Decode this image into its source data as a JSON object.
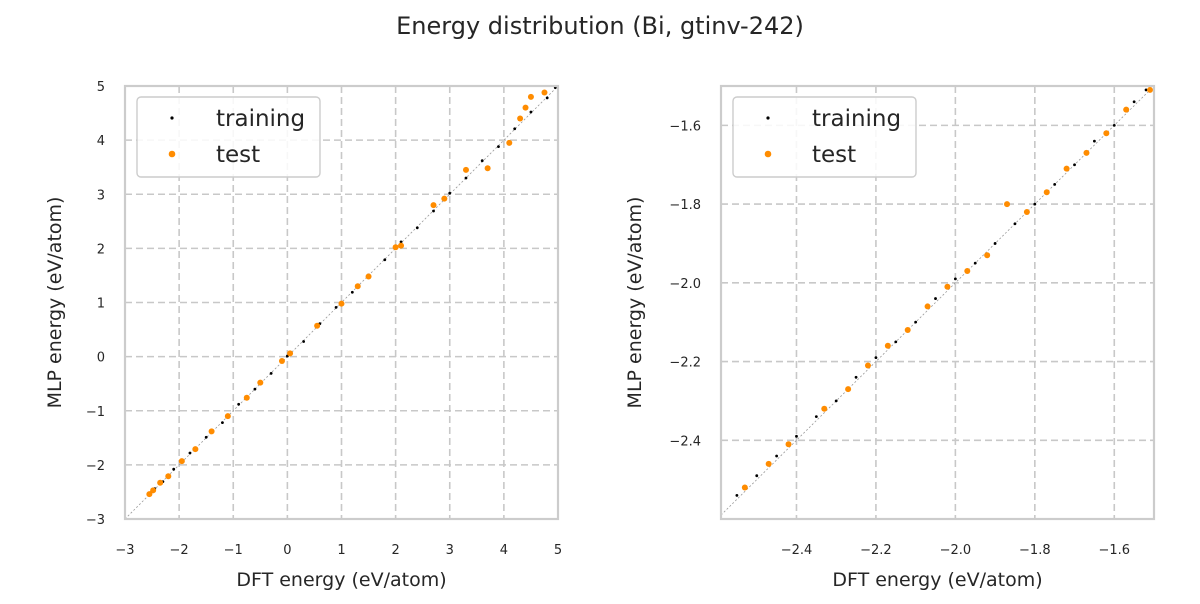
{
  "figure": {
    "title": "Energy distribution (Bi, gtinv-242)"
  },
  "colors": {
    "training": "#000000",
    "test": "#ff8c00",
    "grid": "#c8c8c8",
    "frame": "#cccccc",
    "diagonal": "#999999"
  },
  "chart_data": [
    {
      "type": "scatter",
      "xlabel": "DFT energy (eV/atom)",
      "ylabel": "MLP energy (eV/atom)",
      "xlim": [
        -3,
        5
      ],
      "ylim": [
        -3,
        5
      ],
      "xticks": [
        -3,
        -2,
        -1,
        0,
        1,
        2,
        3,
        4,
        5
      ],
      "yticks": [
        -3,
        -2,
        -1,
        0,
        1,
        2,
        3,
        4,
        5
      ],
      "xtick_labels": [
        "−3",
        "−2",
        "−1",
        "0",
        "1",
        "2",
        "3",
        "4",
        "5"
      ],
      "ytick_labels": [
        "−3",
        "−2",
        "−1",
        "0",
        "1",
        "2",
        "3",
        "4",
        "5"
      ],
      "grid": true,
      "legend_position": "top-left",
      "reference_line": "y = x",
      "series": [
        {
          "name": "training",
          "color": "#000000",
          "points": [
            [
              -2.52,
              -2.51
            ],
            [
              -2.45,
              -2.44
            ],
            [
              -2.3,
              -2.31
            ],
            [
              -2.1,
              -2.08
            ],
            [
              -1.8,
              -1.78
            ],
            [
              -1.5,
              -1.49
            ],
            [
              -1.2,
              -1.22
            ],
            [
              -0.9,
              -0.88
            ],
            [
              -0.6,
              -0.6
            ],
            [
              -0.3,
              -0.31
            ],
            [
              0.0,
              0.01
            ],
            [
              0.3,
              0.28
            ],
            [
              0.6,
              0.61
            ],
            [
              0.9,
              0.91
            ],
            [
              1.2,
              1.19
            ],
            [
              1.5,
              1.51
            ],
            [
              1.8,
              1.79
            ],
            [
              2.1,
              2.12
            ],
            [
              2.4,
              2.38
            ],
            [
              2.7,
              2.69
            ],
            [
              3.0,
              3.02
            ],
            [
              3.3,
              3.3
            ],
            [
              3.6,
              3.62
            ],
            [
              3.9,
              3.88
            ],
            [
              4.2,
              4.21
            ],
            [
              4.5,
              4.52
            ],
            [
              4.8,
              4.78
            ],
            [
              4.95,
              4.97
            ]
          ]
        },
        {
          "name": "test",
          "color": "#ff8c00",
          "points": [
            [
              -2.55,
              -2.54
            ],
            [
              -2.48,
              -2.47
            ],
            [
              -2.35,
              -2.33
            ],
            [
              -2.2,
              -2.21
            ],
            [
              -1.95,
              -1.93
            ],
            [
              -1.7,
              -1.71
            ],
            [
              -1.4,
              -1.38
            ],
            [
              -1.1,
              -1.1
            ],
            [
              -0.75,
              -0.76
            ],
            [
              -0.5,
              -0.48
            ],
            [
              -0.1,
              -0.08
            ],
            [
              0.05,
              0.06
            ],
            [
              0.55,
              0.57
            ],
            [
              1.0,
              0.98
            ],
            [
              1.3,
              1.3
            ],
            [
              1.5,
              1.48
            ],
            [
              2.0,
              2.02
            ],
            [
              2.1,
              2.05
            ],
            [
              2.7,
              2.8
            ],
            [
              2.9,
              2.92
            ],
            [
              3.3,
              3.45
            ],
            [
              3.7,
              3.48
            ],
            [
              4.1,
              3.95
            ],
            [
              4.3,
              4.4
            ],
            [
              4.4,
              4.6
            ],
            [
              4.5,
              4.8
            ],
            [
              4.75,
              4.88
            ]
          ]
        }
      ]
    },
    {
      "type": "scatter",
      "xlabel": "DFT energy (eV/atom)",
      "ylabel": "MLP energy (eV/atom)",
      "xlim": [
        -2.59,
        -1.5
      ],
      "ylim": [
        -2.6,
        -1.5
      ],
      "xticks": [
        -2.4,
        -2.2,
        -2.0,
        -1.8,
        -1.6
      ],
      "yticks": [
        -2.4,
        -2.2,
        -2.0,
        -1.8,
        -1.6
      ],
      "xtick_labels": [
        "−2.4",
        "−2.2",
        "−2.0",
        "−1.8",
        "−1.6"
      ],
      "ytick_labels": [
        "−2.4",
        "−2.2",
        "−2.0",
        "−1.8",
        "−1.6"
      ],
      "grid": true,
      "legend_position": "top-left",
      "reference_line": "y = x",
      "series": [
        {
          "name": "training",
          "color": "#000000",
          "points": [
            [
              -2.55,
              -2.54
            ],
            [
              -2.5,
              -2.49
            ],
            [
              -2.45,
              -2.44
            ],
            [
              -2.4,
              -2.39
            ],
            [
              -2.35,
              -2.34
            ],
            [
              -2.3,
              -2.3
            ],
            [
              -2.25,
              -2.24
            ],
            [
              -2.2,
              -2.19
            ],
            [
              -2.15,
              -2.15
            ],
            [
              -2.1,
              -2.1
            ],
            [
              -2.05,
              -2.04
            ],
            [
              -2.0,
              -1.99
            ],
            [
              -1.95,
              -1.95
            ],
            [
              -1.9,
              -1.9
            ],
            [
              -1.85,
              -1.85
            ],
            [
              -1.8,
              -1.8
            ],
            [
              -1.75,
              -1.75
            ],
            [
              -1.7,
              -1.7
            ],
            [
              -1.65,
              -1.64
            ],
            [
              -1.6,
              -1.6
            ],
            [
              -1.55,
              -1.54
            ],
            [
              -1.52,
              -1.51
            ]
          ]
        },
        {
          "name": "test",
          "color": "#ff8c00",
          "points": [
            [
              -2.53,
              -2.52
            ],
            [
              -2.47,
              -2.46
            ],
            [
              -2.42,
              -2.41
            ],
            [
              -2.33,
              -2.32
            ],
            [
              -2.27,
              -2.27
            ],
            [
              -2.22,
              -2.21
            ],
            [
              -2.17,
              -2.16
            ],
            [
              -2.12,
              -2.12
            ],
            [
              -2.07,
              -2.06
            ],
            [
              -2.02,
              -2.01
            ],
            [
              -1.97,
              -1.97
            ],
            [
              -1.92,
              -1.93
            ],
            [
              -1.87,
              -1.8
            ],
            [
              -1.82,
              -1.82
            ],
            [
              -1.77,
              -1.77
            ],
            [
              -1.72,
              -1.71
            ],
            [
              -1.67,
              -1.67
            ],
            [
              -1.62,
              -1.62
            ],
            [
              -1.57,
              -1.56
            ],
            [
              -1.51,
              -1.51
            ]
          ]
        }
      ]
    }
  ]
}
